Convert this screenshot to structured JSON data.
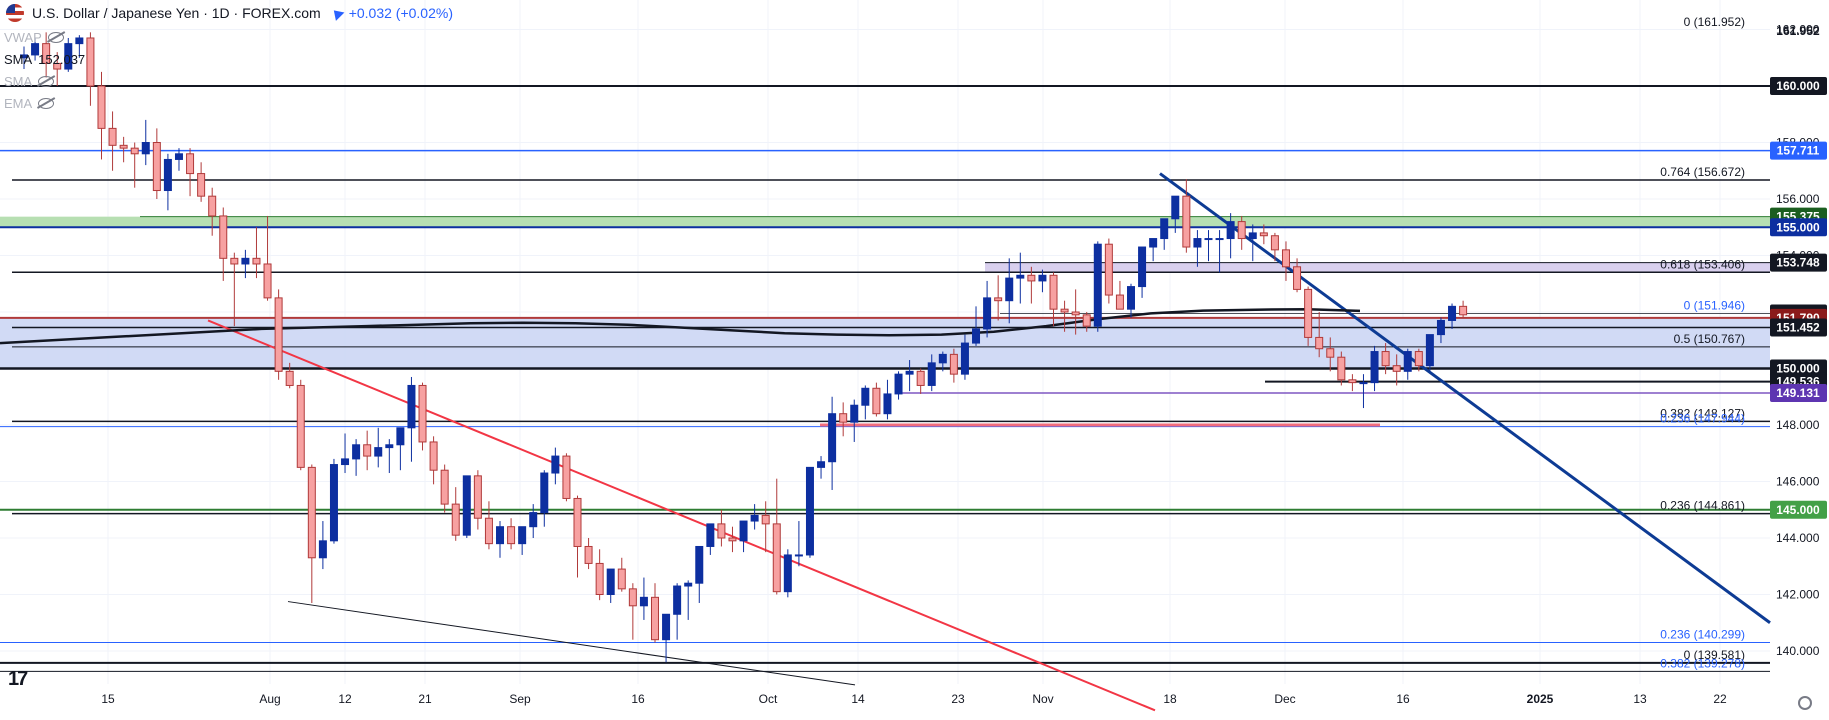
{
  "header": {
    "title": "U.S. Dollar / Japanese Yen · 1D · FOREX.com",
    "change": "+0.032 (+0.02%)"
  },
  "indicators": [
    {
      "label": "VWAP",
      "value": "",
      "hidden": true
    },
    {
      "label": "SMA",
      "value": "152.037",
      "hidden": false
    },
    {
      "label": "SMA",
      "value": "",
      "hidden": true
    },
    {
      "label": "EMA",
      "value": "",
      "hidden": true
    }
  ],
  "colors": {
    "up": "#0d2fa0",
    "down": "#f7a1a1",
    "down_border": "#b03a3a",
    "blue_line": "#2962ff",
    "green": "#2e7d32",
    "red_line": "#f23645",
    "trend_blue": "#0d3b94",
    "zone_blue": "#c9d3f3",
    "zone_green": "#b7dfb2",
    "zone_purple": "#d9d0ee"
  },
  "chart_data": {
    "type": "candlestick",
    "title": "U.S. Dollar / Japanese Yen · 1D · FOREX.com",
    "xlabel": "",
    "ylabel": "",
    "ylim": [
      138.8,
      162.6
    ],
    "x_tick_labels": [
      "15",
      "Aug",
      "12",
      "21",
      "Sep",
      "16",
      "Oct",
      "14",
      "23",
      "Nov",
      "18",
      "Dec",
      "16",
      "2025",
      "13",
      "22"
    ],
    "y_tick_labels": [
      "140.000",
      "142.000",
      "144.000",
      "146.000",
      "148.000",
      "150.000",
      "152.000",
      "154.000",
      "156.000",
      "158.000",
      "160.000",
      "162.000"
    ],
    "candles": [
      [
        161.0,
        161.4,
        160.6,
        161.1
      ],
      [
        161.1,
        161.7,
        160.9,
        161.5
      ],
      [
        161.5,
        161.9,
        160.3,
        160.8
      ],
      [
        160.8,
        161.2,
        160.0,
        160.6
      ],
      [
        160.6,
        161.7,
        160.5,
        161.5
      ],
      [
        161.5,
        161.8,
        161.0,
        161.7
      ],
      [
        161.7,
        161.9,
        159.3,
        160.0
      ],
      [
        160.0,
        160.5,
        157.4,
        158.5
      ],
      [
        158.5,
        159.1,
        157.0,
        157.9
      ],
      [
        157.9,
        158.2,
        157.3,
        157.8
      ],
      [
        157.8,
        158.0,
        156.4,
        157.6
      ],
      [
        157.6,
        158.8,
        157.2,
        158.0
      ],
      [
        158.0,
        158.5,
        156.0,
        156.3
      ],
      [
        156.3,
        157.6,
        155.6,
        157.4
      ],
      [
        157.4,
        157.8,
        157.0,
        157.6
      ],
      [
        157.6,
        157.8,
        156.1,
        156.9
      ],
      [
        156.9,
        157.3,
        155.9,
        156.1
      ],
      [
        156.1,
        156.4,
        154.7,
        155.4
      ],
      [
        155.4,
        155.7,
        153.1,
        153.9
      ],
      [
        153.9,
        154.1,
        151.5,
        153.7
      ],
      [
        153.7,
        154.2,
        153.2,
        153.9
      ],
      [
        153.9,
        155.0,
        153.2,
        153.7
      ],
      [
        153.7,
        155.4,
        152.4,
        152.5
      ],
      [
        152.5,
        152.8,
        149.6,
        149.9
      ],
      [
        149.9,
        150.2,
        149.3,
        149.4
      ],
      [
        149.4,
        149.6,
        146.4,
        146.5
      ],
      [
        146.5,
        146.6,
        141.7,
        143.3
      ],
      [
        143.3,
        144.6,
        142.9,
        143.9
      ],
      [
        143.9,
        146.8,
        143.8,
        146.6
      ],
      [
        146.6,
        147.7,
        146.3,
        146.8
      ],
      [
        146.8,
        147.5,
        146.2,
        147.3
      ],
      [
        147.3,
        147.8,
        146.4,
        146.9
      ],
      [
        146.9,
        147.9,
        146.5,
        147.2
      ],
      [
        147.2,
        147.5,
        146.3,
        147.3
      ],
      [
        147.3,
        147.7,
        146.4,
        147.9
      ],
      [
        147.9,
        149.7,
        146.7,
        149.4
      ],
      [
        149.4,
        149.5,
        147.1,
        147.4
      ],
      [
        147.4,
        147.6,
        145.9,
        146.4
      ],
      [
        146.4,
        146.6,
        144.9,
        145.2
      ],
      [
        145.2,
        145.8,
        143.9,
        144.1
      ],
      [
        144.1,
        146.2,
        144.0,
        146.2
      ],
      [
        146.2,
        146.4,
        144.3,
        144.7
      ],
      [
        144.7,
        145.3,
        143.6,
        143.8
      ],
      [
        143.8,
        144.6,
        143.3,
        144.4
      ],
      [
        144.4,
        144.7,
        143.6,
        143.8
      ],
      [
        143.8,
        144.2,
        143.4,
        144.4
      ],
      [
        144.4,
        145.2,
        144.0,
        144.9
      ],
      [
        144.9,
        146.4,
        144.4,
        146.3
      ],
      [
        146.3,
        147.2,
        145.9,
        146.9
      ],
      [
        146.9,
        147.0,
        145.3,
        145.4
      ],
      [
        145.4,
        145.5,
        142.6,
        143.7
      ],
      [
        143.7,
        144.0,
        142.9,
        143.1
      ],
      [
        143.1,
        143.6,
        141.8,
        142.0
      ],
      [
        142.0,
        142.9,
        141.7,
        142.9
      ],
      [
        142.9,
        143.3,
        142.1,
        142.2
      ],
      [
        142.2,
        142.4,
        140.4,
        141.6
      ],
      [
        141.6,
        142.6,
        141.1,
        141.9
      ],
      [
        141.9,
        142.4,
        140.3,
        140.4
      ],
      [
        140.4,
        141.3,
        139.6,
        141.3
      ],
      [
        141.3,
        142.4,
        140.4,
        142.3
      ],
      [
        142.3,
        142.5,
        141.1,
        142.4
      ],
      [
        142.4,
        143.7,
        141.7,
        143.7
      ],
      [
        143.7,
        144.5,
        143.4,
        144.5
      ],
      [
        144.5,
        145.0,
        143.7,
        144.0
      ],
      [
        144.0,
        144.4,
        143.5,
        143.9
      ],
      [
        143.9,
        144.6,
        143.5,
        144.6
      ],
      [
        144.6,
        145.2,
        144.3,
        144.8
      ],
      [
        144.8,
        145.3,
        143.5,
        144.5
      ],
      [
        144.5,
        146.1,
        142.0,
        142.1
      ],
      [
        142.1,
        143.6,
        141.9,
        143.4
      ],
      [
        143.4,
        144.6,
        143.0,
        143.4
      ],
      [
        143.4,
        146.5,
        143.3,
        146.5
      ],
      [
        146.5,
        146.9,
        146.1,
        146.7
      ],
      [
        146.7,
        149.0,
        145.7,
        148.4
      ],
      [
        148.4,
        148.8,
        147.6,
        148.1
      ],
      [
        148.1,
        148.9,
        147.4,
        148.7
      ],
      [
        148.7,
        149.4,
        148.2,
        149.3
      ],
      [
        149.3,
        149.5,
        148.3,
        148.4
      ],
      [
        148.4,
        149.6,
        148.2,
        149.1
      ],
      [
        149.1,
        149.9,
        148.9,
        149.8
      ],
      [
        149.8,
        150.3,
        149.2,
        149.9
      ],
      [
        149.9,
        150.0,
        149.1,
        149.4
      ],
      [
        149.4,
        150.5,
        149.2,
        150.2
      ],
      [
        150.2,
        150.6,
        149.9,
        150.5
      ],
      [
        150.5,
        150.7,
        149.5,
        149.8
      ],
      [
        149.8,
        151.2,
        149.6,
        150.9
      ],
      [
        150.9,
        152.2,
        150.8,
        151.4
      ],
      [
        151.4,
        153.1,
        151.1,
        152.5
      ],
      [
        152.5,
        153.3,
        151.7,
        152.4
      ],
      [
        152.4,
        153.9,
        151.6,
        153.2
      ],
      [
        153.2,
        154.1,
        152.3,
        153.3
      ],
      [
        153.3,
        153.6,
        152.3,
        153.1
      ],
      [
        153.1,
        153.5,
        152.7,
        153.3
      ],
      [
        153.3,
        153.4,
        151.5,
        152.1
      ],
      [
        152.1,
        152.4,
        151.3,
        152.0
      ],
      [
        152.0,
        152.8,
        151.2,
        151.9
      ],
      [
        151.9,
        152.0,
        151.3,
        151.5
      ],
      [
        151.5,
        154.5,
        151.3,
        154.4
      ],
      [
        154.4,
        154.6,
        152.3,
        152.6
      ],
      [
        152.6,
        153.1,
        152.1,
        152.1
      ],
      [
        152.1,
        153.0,
        151.8,
        152.9
      ],
      [
        152.9,
        154.2,
        152.5,
        154.3
      ],
      [
        154.3,
        154.6,
        153.8,
        154.6
      ],
      [
        154.6,
        155.3,
        154.2,
        155.3
      ],
      [
        155.3,
        156.1,
        154.8,
        156.1
      ],
      [
        156.1,
        156.7,
        154.1,
        154.3
      ],
      [
        154.3,
        154.9,
        153.6,
        154.6
      ],
      [
        154.6,
        154.9,
        153.8,
        154.6
      ],
      [
        154.6,
        154.9,
        153.4,
        154.6
      ],
      [
        154.6,
        155.5,
        153.9,
        155.2
      ],
      [
        155.2,
        155.4,
        154.2,
        154.6
      ],
      [
        154.6,
        155.1,
        153.8,
        154.8
      ],
      [
        154.8,
        155.1,
        154.4,
        154.7
      ],
      [
        154.7,
        154.8,
        153.8,
        154.2
      ],
      [
        154.2,
        154.5,
        153.1,
        153.6
      ],
      [
        153.6,
        153.9,
        152.7,
        152.8
      ],
      [
        152.8,
        152.9,
        150.8,
        151.1
      ],
      [
        151.1,
        152.0,
        150.4,
        150.7
      ],
      [
        150.7,
        151.1,
        149.9,
        150.4
      ],
      [
        150.4,
        150.6,
        149.4,
        149.6
      ],
      [
        149.6,
        149.8,
        149.2,
        149.5
      ],
      [
        149.5,
        149.8,
        148.6,
        149.5
      ],
      [
        149.5,
        150.8,
        149.2,
        150.6
      ],
      [
        150.6,
        150.9,
        149.8,
        150.1
      ],
      [
        150.1,
        150.5,
        149.4,
        149.9
      ],
      [
        149.9,
        150.7,
        149.6,
        150.6
      ],
      [
        150.6,
        150.7,
        149.9,
        150.1
      ],
      [
        150.1,
        151.2,
        149.9,
        151.2
      ],
      [
        151.2,
        151.8,
        150.9,
        151.7
      ],
      [
        151.7,
        152.3,
        151.4,
        152.2
      ],
      [
        152.2,
        152.4,
        151.8,
        151.9
      ]
    ],
    "sma_line": [
      150.9,
      151.0,
      151.1,
      151.2,
      151.3,
      151.4,
      151.45,
      151.5,
      151.55,
      151.6,
      151.62,
      151.6,
      151.55,
      151.45,
      151.35,
      151.25,
      151.2,
      151.18,
      151.2,
      151.3,
      151.5,
      151.75,
      151.95,
      152.05,
      152.08,
      152.1,
      152.04
    ],
    "horizontal_levels": [
      {
        "value": 161.952,
        "label": "0 (161.952)"
      },
      {
        "value": 160.0,
        "label": "160.000"
      },
      {
        "value": 157.711,
        "label": "157.711"
      },
      {
        "value": 156.672,
        "label": "0.764 (156.672)"
      },
      {
        "value": 155.375,
        "label": "155.375"
      },
      {
        "value": 155.0,
        "label": "155.000"
      },
      {
        "value": 153.748,
        "label": "153.748"
      },
      {
        "value": 153.406,
        "label": "0.618 (153.406)"
      },
      {
        "value": 151.946,
        "label": "0 (151.946)"
      },
      {
        "value": 151.79,
        "label": "151.790"
      },
      {
        "value": 151.452,
        "label": "151.452"
      },
      {
        "value": 150.767,
        "label": "0.5 (150.767)"
      },
      {
        "value": 150.0,
        "label": "150.000"
      },
      {
        "value": 149.536,
        "label": "149.536"
      },
      {
        "value": 149.131,
        "label": "149.131"
      },
      {
        "value": 148.127,
        "label": "0.382 (148.127)"
      },
      {
        "value": 147.944,
        "label": "0.236 (147.944)"
      },
      {
        "value": 145.0,
        "label": "145.000"
      },
      {
        "value": 144.861,
        "label": "0.236 (144.861)"
      },
      {
        "value": 140.299,
        "label": "0.236 (140.299)"
      },
      {
        "value": 139.581,
        "label": "0 (139.581)"
      },
      {
        "value": 139.278,
        "label": "0.382 (139.278)"
      }
    ],
    "price_tags": [
      {
        "value": 161.952,
        "label": "161.952",
        "style": "plain"
      },
      {
        "value": 160.0,
        "label": "160.000",
        "style": "black"
      },
      {
        "value": 157.711,
        "label": "157.711",
        "style": "blue"
      },
      {
        "value": 155.375,
        "label": "155.375",
        "style": "darkgreen"
      },
      {
        "value": 155.0,
        "label": "155.000",
        "style": "navy"
      },
      {
        "value": 153.748,
        "label": "153.748",
        "style": "black"
      },
      {
        "value": 151.946,
        "label": "151.946",
        "style": "black"
      },
      {
        "value": 151.79,
        "label": "151.790",
        "style": "maroon"
      },
      {
        "value": 151.452,
        "label": "151.452",
        "style": "black"
      },
      {
        "value": 150.0,
        "label": "150.000",
        "style": "black"
      },
      {
        "value": 149.536,
        "label": "149.536",
        "style": "black"
      },
      {
        "value": 149.131,
        "label": "149.131",
        "style": "purple"
      },
      {
        "value": 145.0,
        "label": "145.000",
        "style": "green"
      }
    ]
  }
}
